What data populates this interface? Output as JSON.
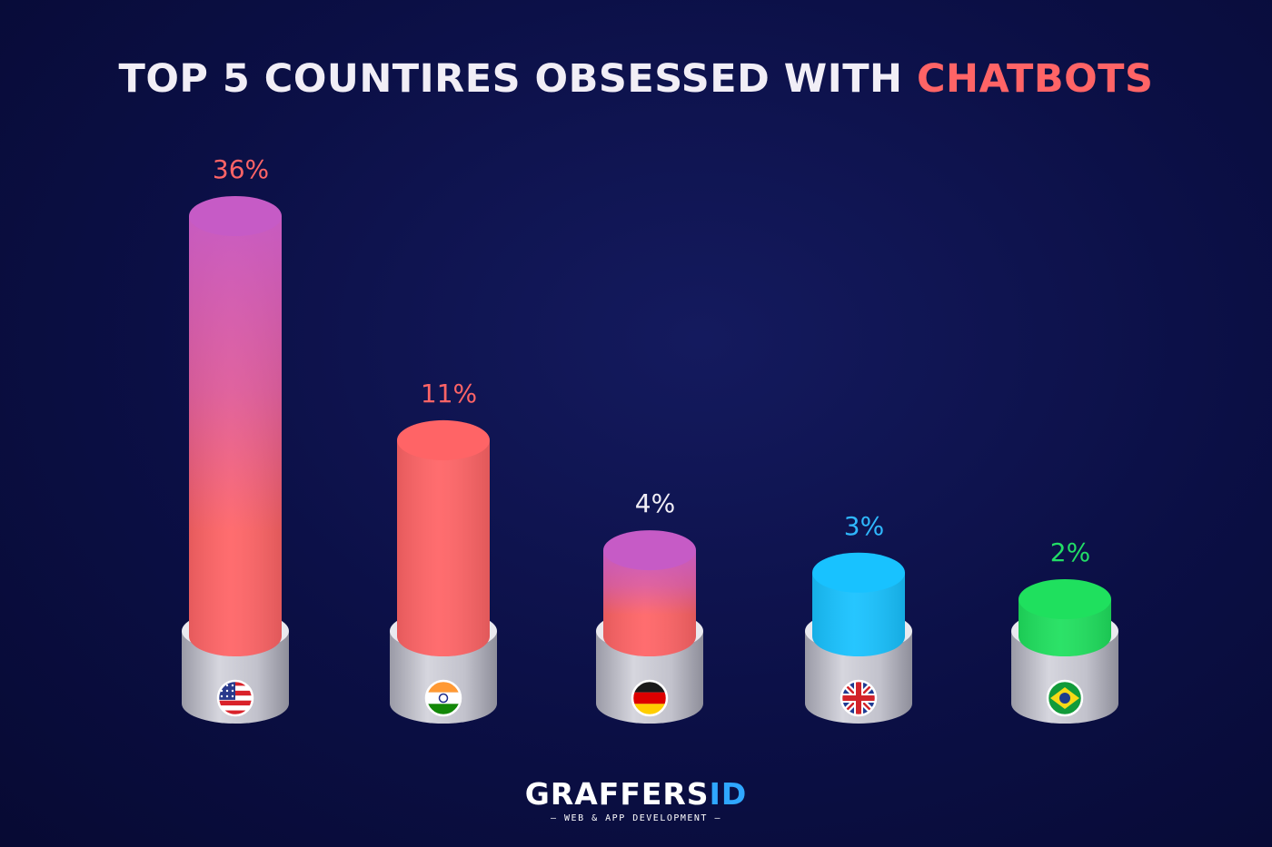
{
  "title": {
    "main": "TOP 5 COUNTIRES OBSESSED WITH ",
    "accent": "CHATBOTS"
  },
  "chart_data": {
    "type": "bar",
    "title": "TOP 5 COUNTIRES OBSESSED WITH CHATBOTS",
    "categories": [
      "United States",
      "India",
      "Germany",
      "United Kingdom",
      "Brazil"
    ],
    "values": [
      36,
      11,
      4,
      3,
      2
    ],
    "value_labels": [
      "36%",
      "11%",
      "4%",
      "3%",
      "2%"
    ],
    "label_colors": [
      "#ff6466",
      "#ff6466",
      "#f1eef6",
      "#2fb8ff",
      "#22dd66"
    ],
    "bar_colors": [
      "#ff6466",
      "#ff6466",
      "#ff6466",
      "#18c2ff",
      "#1fe05e"
    ],
    "top_colors": [
      "#c65bc6",
      "#ff6466",
      "#c65bc6",
      "#18c2ff",
      "#1fe05e"
    ],
    "flag_icons": [
      "usa-flag-icon",
      "india-flag-icon",
      "germany-flag-icon",
      "uk-flag-icon",
      "brazil-flag-icon"
    ],
    "category_labels_shown": false
  },
  "logo": {
    "word": "GRAFFERS",
    "word_accent": "ID",
    "tagline": "— WEB & APP DEVELOPMENT —"
  }
}
